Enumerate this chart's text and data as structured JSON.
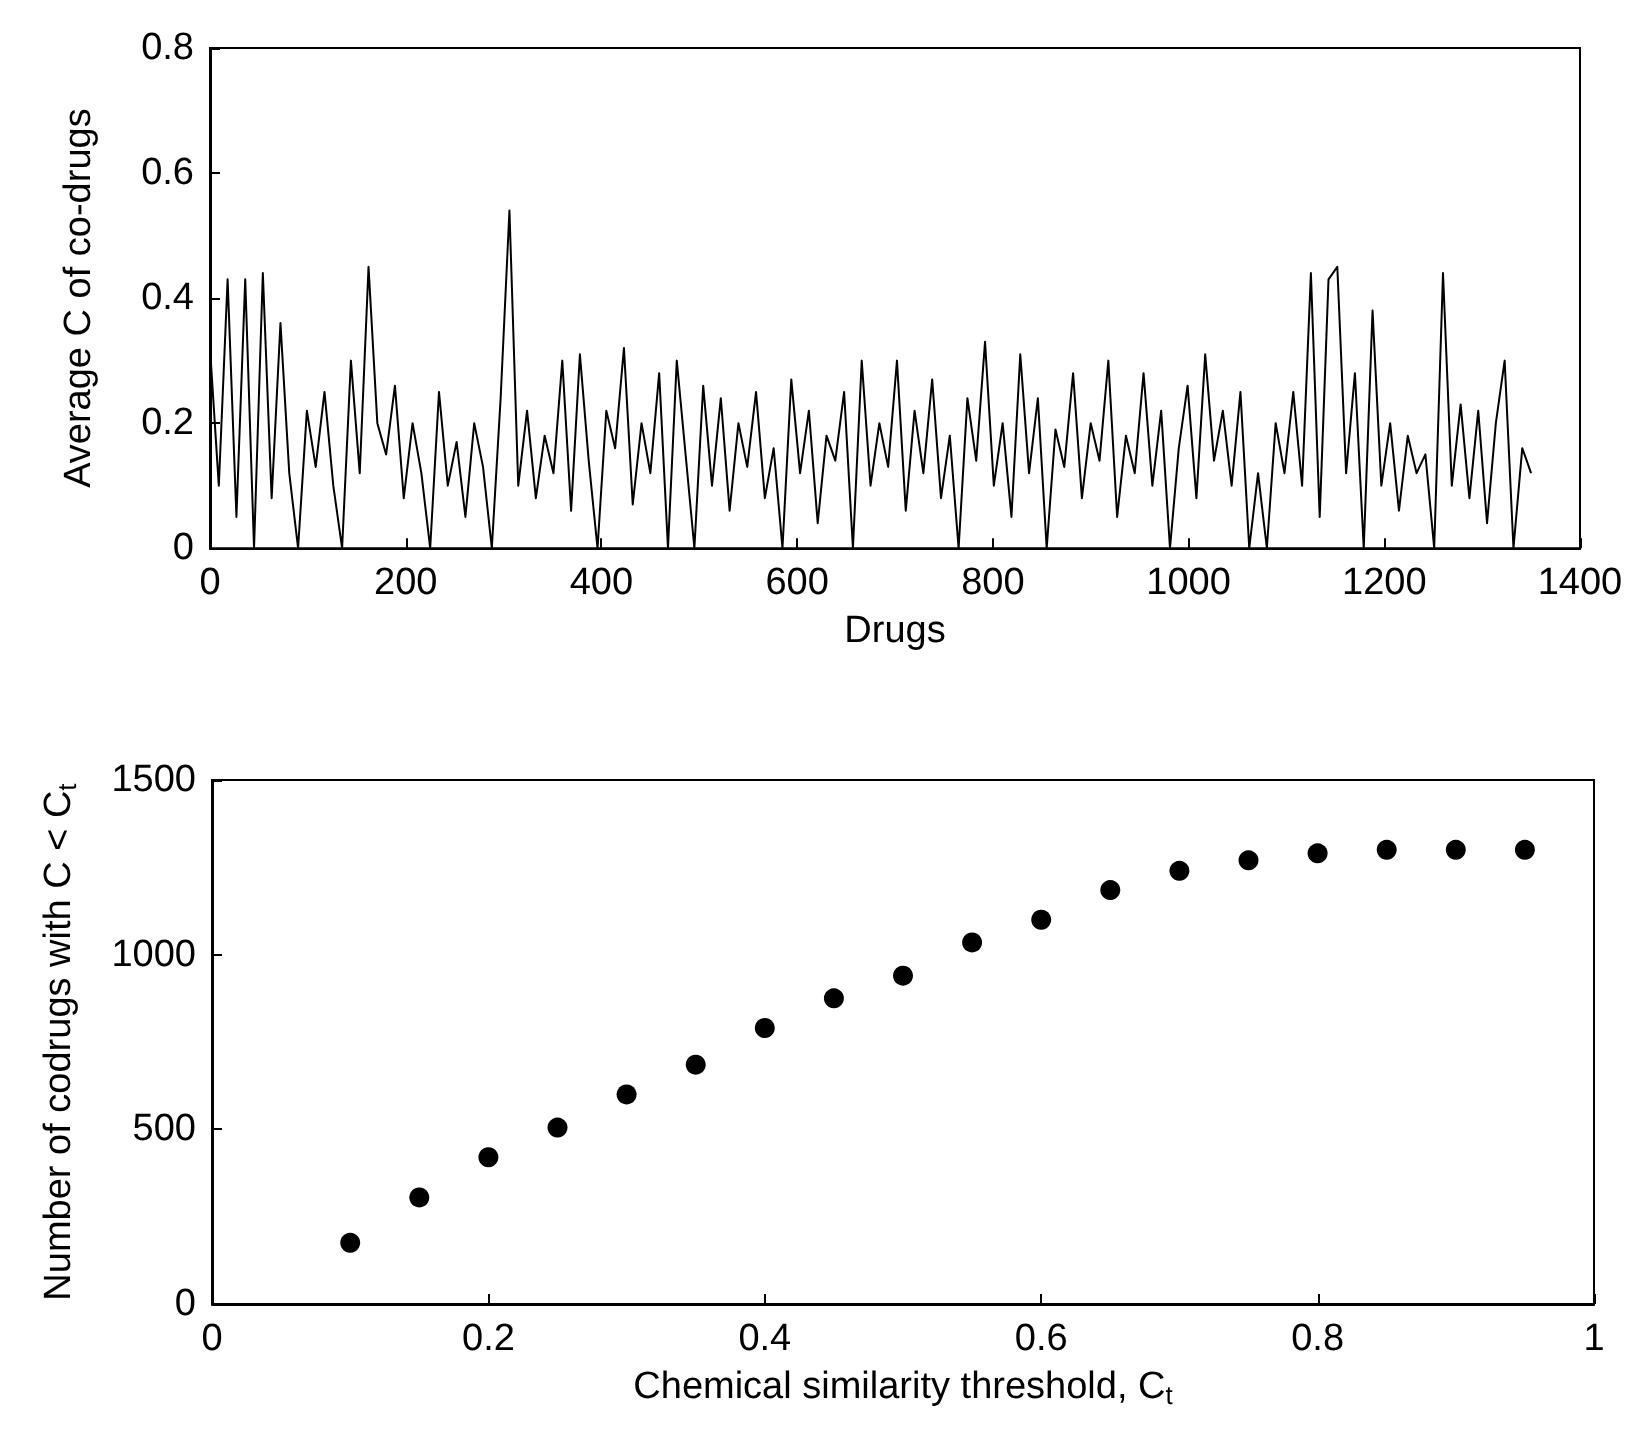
{
  "chart_data": [
    {
      "type": "line",
      "xlabel": "Drugs",
      "ylabel": "Average C of co-drugs",
      "xlim": [
        0,
        1400
      ],
      "xticks": [
        0,
        200,
        400,
        600,
        800,
        1000,
        1200,
        1400
      ],
      "ylim": [
        0,
        0.8
      ],
      "yticks": [
        0,
        0.2,
        0.4,
        0.6,
        0.8
      ],
      "grid": false,
      "marker": "none",
      "line_style": "solid",
      "x": [
        0,
        9,
        18,
        27,
        36,
        45,
        54,
        63,
        72,
        81,
        90,
        99,
        108,
        117,
        126,
        135,
        144,
        153,
        162,
        171,
        180,
        189,
        198,
        207,
        216,
        225,
        234,
        243,
        252,
        261,
        270,
        279,
        288,
        297,
        306,
        315,
        324,
        333,
        342,
        351,
        360,
        369,
        378,
        387,
        396,
        405,
        414,
        423,
        432,
        441,
        450,
        459,
        468,
        477,
        486,
        495,
        504,
        513,
        522,
        531,
        540,
        549,
        558,
        567,
        576,
        585,
        594,
        603,
        612,
        621,
        630,
        639,
        648,
        657,
        666,
        675,
        684,
        693,
        702,
        711,
        720,
        729,
        738,
        747,
        756,
        765,
        774,
        783,
        792,
        801,
        810,
        819,
        828,
        837,
        846,
        855,
        864,
        873,
        882,
        891,
        900,
        909,
        918,
        927,
        936,
        945,
        954,
        963,
        972,
        981,
        990,
        999,
        1008,
        1017,
        1026,
        1035,
        1044,
        1053,
        1062,
        1071,
        1080,
        1089,
        1098,
        1107,
        1116,
        1125,
        1134,
        1143,
        1152,
        1161,
        1170,
        1179,
        1188,
        1197,
        1206,
        1215,
        1224,
        1233,
        1242,
        1251,
        1260,
        1269,
        1278,
        1287,
        1296,
        1305,
        1314,
        1323,
        1332,
        1341,
        1350
      ],
      "series": [
        {
          "color": "#000000",
          "values": [
            0.32,
            0.1,
            0.43,
            0.05,
            0.43,
            0.0,
            0.44,
            0.08,
            0.36,
            0.12,
            0.0,
            0.22,
            0.13,
            0.25,
            0.1,
            0.0,
            0.3,
            0.12,
            0.45,
            0.2,
            0.15,
            0.26,
            0.08,
            0.2,
            0.12,
            0.0,
            0.25,
            0.1,
            0.17,
            0.05,
            0.2,
            0.13,
            0.0,
            0.24,
            0.54,
            0.1,
            0.22,
            0.08,
            0.18,
            0.12,
            0.3,
            0.06,
            0.31,
            0.14,
            0.0,
            0.22,
            0.16,
            0.32,
            0.07,
            0.2,
            0.12,
            0.28,
            0.0,
            0.3,
            0.15,
            0.0,
            0.26,
            0.1,
            0.24,
            0.06,
            0.2,
            0.13,
            0.25,
            0.08,
            0.16,
            0.0,
            0.27,
            0.12,
            0.22,
            0.04,
            0.18,
            0.14,
            0.25,
            0.0,
            0.3,
            0.1,
            0.2,
            0.13,
            0.3,
            0.06,
            0.22,
            0.12,
            0.27,
            0.08,
            0.18,
            0.0,
            0.24,
            0.14,
            0.33,
            0.1,
            0.2,
            0.05,
            0.31,
            0.12,
            0.24,
            0.0,
            0.19,
            0.13,
            0.28,
            0.08,
            0.2,
            0.14,
            0.3,
            0.05,
            0.18,
            0.12,
            0.28,
            0.1,
            0.22,
            0.0,
            0.16,
            0.26,
            0.08,
            0.31,
            0.14,
            0.22,
            0.1,
            0.25,
            0.0,
            0.12,
            0.0,
            0.2,
            0.12,
            0.25,
            0.1,
            0.44,
            0.05,
            0.43,
            0.45,
            0.12,
            0.28,
            0.0,
            0.38,
            0.1,
            0.2,
            0.06,
            0.18,
            0.12,
            0.15,
            0.0,
            0.44,
            0.1,
            0.23,
            0.08,
            0.22,
            0.04,
            0.2,
            0.3,
            0.0,
            0.16,
            0.12
          ]
        }
      ]
    },
    {
      "type": "scatter",
      "xlabel": "Chemical similarity threshold, C$_{t}$",
      "ylabel": "Number of codrugs with C < C$_{t}$",
      "xlim": [
        0,
        1
      ],
      "xticks": [
        0,
        0.2,
        0.4,
        0.6,
        0.8,
        1
      ],
      "ylim": [
        0,
        1500
      ],
      "yticks": [
        0,
        500,
        1000,
        1500
      ],
      "grid": false,
      "marker": "circle",
      "x": [
        0.1,
        0.15,
        0.2,
        0.25,
        0.3,
        0.35,
        0.4,
        0.45,
        0.5,
        0.55,
        0.6,
        0.65,
        0.7,
        0.75,
        0.8,
        0.85,
        0.9,
        0.95
      ],
      "series": [
        {
          "color": "#000000",
          "values": [
            175,
            305,
            420,
            505,
            600,
            685,
            790,
            875,
            940,
            1035,
            1100,
            1185,
            1240,
            1270,
            1290,
            1300,
            1300,
            1300
          ]
        }
      ]
    }
  ]
}
